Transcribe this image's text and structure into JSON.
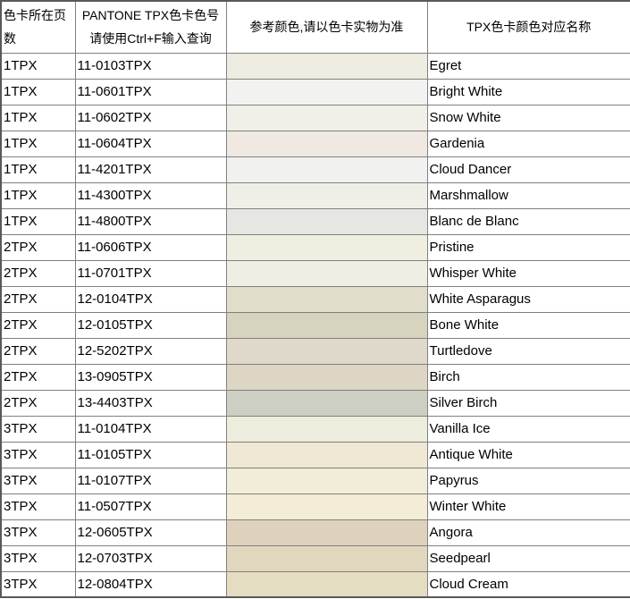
{
  "table": {
    "headers": {
      "page_col": "色卡所在页数",
      "code_col_line1": "PANTONE TPX色卡色号",
      "code_col_line2": "请使用Ctrl+F输入查询",
      "swatch_col": "参考颜色,请以色卡实物为准",
      "name_col": "TPX色卡颜色对应名称"
    },
    "style": {
      "inner_border_color": "#808080",
      "outer_border_color": "#595959",
      "text_color": "#000000"
    },
    "rows": [
      {
        "page": "1TPX",
        "code": "11-0103TPX",
        "swatch": "#EEEBE1",
        "name": "Egret"
      },
      {
        "page": "1TPX",
        "code": "11-0601TPX",
        "swatch": "#F2F2F0",
        "name": "Bright White"
      },
      {
        "page": "1TPX",
        "code": "11-0602TPX",
        "swatch": "#F0F0E9",
        "name": "Snow White"
      },
      {
        "page": "1TPX",
        "code": "11-0604TPX",
        "swatch": "#EFE9E1",
        "name": "Gardenia"
      },
      {
        "page": "1TPX",
        "code": "11-4201TPX",
        "swatch": "#F1F1EF",
        "name": "Cloud Dancer"
      },
      {
        "page": "1TPX",
        "code": "11-4300TPX",
        "swatch": "#F0EFE7",
        "name": "Marshmallow"
      },
      {
        "page": "1TPX",
        "code": "11-4800TPX",
        "swatch": "#E6E7E2",
        "name": "Blanc de Blanc"
      },
      {
        "page": "2TPX",
        "code": "11-0606TPX",
        "swatch": "#F0EEE1",
        "name": "Pristine"
      },
      {
        "page": "2TPX",
        "code": "11-0701TPX",
        "swatch": "#F0EEE4",
        "name": "Whisper White"
      },
      {
        "page": "2TPX",
        "code": "12-0104TPX",
        "swatch": "#E0DECB",
        "name": "White Asparagus"
      },
      {
        "page": "2TPX",
        "code": "12-0105TPX",
        "swatch": "#D6D4BF",
        "name": "Bone White"
      },
      {
        "page": "2TPX",
        "code": "12-5202TPX",
        "swatch": "#E0D9C9",
        "name": "Turtledove"
      },
      {
        "page": "2TPX",
        "code": "13-0905TPX",
        "swatch": "#DED6C4",
        "name": "Birch"
      },
      {
        "page": "2TPX",
        "code": "13-4403TPX",
        "swatch": "#CCCFC2",
        "name": "Silver Birch"
      },
      {
        "page": "3TPX",
        "code": "11-0104TPX",
        "swatch": "#EDECDD",
        "name": "Vanilla Ice"
      },
      {
        "page": "3TPX",
        "code": "11-0105TPX",
        "swatch": "#EFE8D4",
        "name": "Antique White"
      },
      {
        "page": "3TPX",
        "code": "11-0107TPX",
        "swatch": "#F1EDD8",
        "name": "Papyrus"
      },
      {
        "page": "3TPX",
        "code": "11-0507TPX",
        "swatch": "#F3ECD6",
        "name": "Winter White"
      },
      {
        "page": "3TPX",
        "code": "12-0605TPX",
        "swatch": "#DED2BC",
        "name": "Angora"
      },
      {
        "page": "3TPX",
        "code": "12-0703TPX",
        "swatch": "#E0D7BE",
        "name": "Seedpearl"
      },
      {
        "page": "3TPX",
        "code": "12-0804TPX",
        "swatch": "#E5DDC2",
        "name": "Cloud Cream"
      }
    ]
  }
}
